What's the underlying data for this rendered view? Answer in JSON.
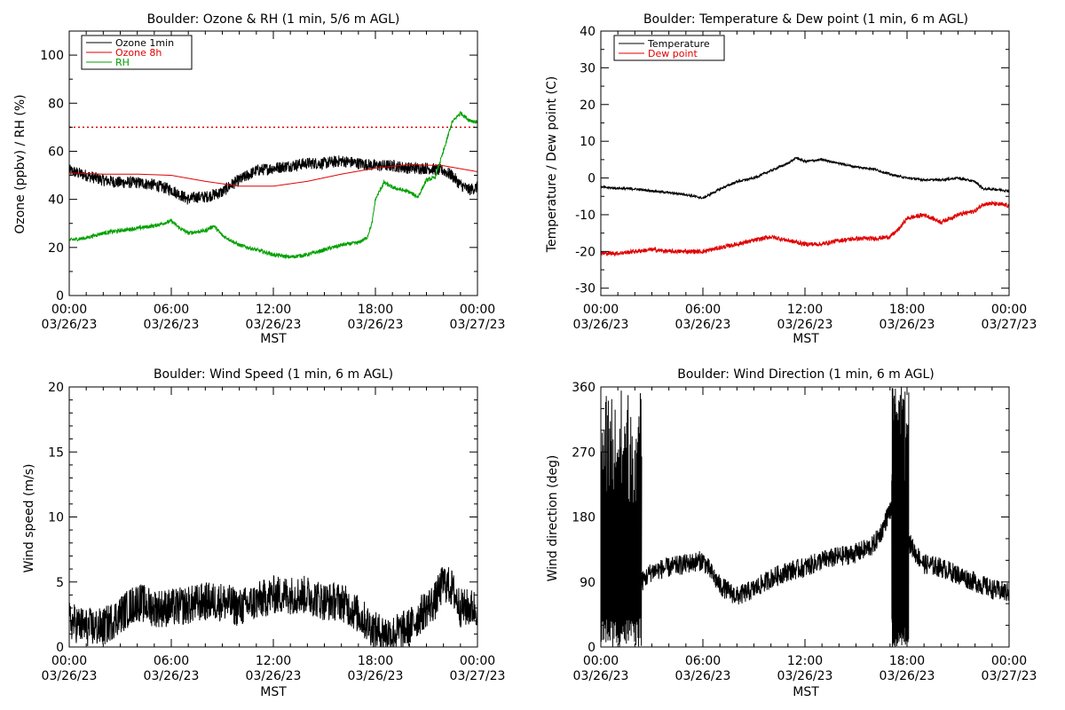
{
  "chart_data": [
    {
      "type": "line",
      "title": "Boulder: Ozone & RH (1 min, 5/6 m AGL)",
      "xlabel": "MST",
      "ylabel": "Ozone (ppbv) / RH (%)",
      "xlim": [
        0,
        24
      ],
      "ylim": [
        0,
        110
      ],
      "x_tick_labels": [
        {
          "time": "00:00",
          "date": "03/26/23"
        },
        {
          "time": "06:00",
          "date": "03/26/23"
        },
        {
          "time": "12:00",
          "date": "03/26/23"
        },
        {
          "time": "18:00",
          "date": "03/26/23"
        },
        {
          "time": "00:00",
          "date": "03/27/23"
        }
      ],
      "y_ticks": [
        0,
        20,
        40,
        60,
        80,
        100
      ],
      "legend": "top-left",
      "reference_line": {
        "y": 70,
        "style": "dotted",
        "color": "#e00000"
      },
      "series": [
        {
          "name": "Ozone 1min",
          "color": "#000000",
          "noise": 2.5,
          "x": [
            0,
            1,
            2,
            3,
            4,
            5,
            6,
            6.5,
            7,
            7.5,
            8,
            9,
            9.5,
            10,
            11,
            12,
            13,
            14,
            15,
            16,
            17,
            18,
            19,
            20,
            21,
            22,
            22.5,
            23,
            23.5,
            24
          ],
          "y": [
            52,
            50,
            48,
            47,
            47,
            46,
            44,
            42,
            40,
            41,
            41,
            43,
            46,
            48,
            52,
            53,
            54,
            55,
            55,
            56,
            55,
            54,
            54,
            53,
            53,
            52,
            50,
            46,
            44,
            45
          ]
        },
        {
          "name": "Ozone 8h",
          "color": "#e00000",
          "noise": 0,
          "x": [
            0,
            2,
            4,
            6,
            8,
            10,
            12,
            14,
            16,
            18,
            20,
            22,
            24
          ],
          "y": [
            51,
            50.5,
            50.5,
            50,
            47.5,
            45.5,
            45.5,
            47.5,
            50.5,
            53,
            54.5,
            54,
            51.5
          ]
        },
        {
          "name": "RH",
          "color": "#00a000",
          "noise": 0.8,
          "x": [
            0,
            1,
            2,
            3,
            4,
            5,
            6,
            6.5,
            7,
            8,
            8.5,
            9,
            9.5,
            10,
            11,
            12,
            13,
            14,
            15,
            16,
            17,
            17.5,
            17.8,
            18,
            18.5,
            19,
            20,
            20.5,
            21,
            21.5,
            22,
            22.5,
            23,
            23.5,
            24
          ],
          "y": [
            23,
            24,
            26,
            27,
            28,
            29,
            31,
            28,
            26,
            27,
            29,
            25,
            23,
            21,
            19,
            17,
            16,
            17,
            19,
            21,
            22,
            24,
            30,
            40,
            47,
            45,
            43,
            41,
            48,
            49,
            60,
            72,
            76,
            73,
            72
          ]
        }
      ]
    },
    {
      "type": "line",
      "title": "Boulder: Temperature & Dew point (1 min, 6 m AGL)",
      "xlabel": "MST",
      "ylabel": "Temperature / Dew point (C)",
      "xlim": [
        0,
        24
      ],
      "ylim": [
        -32,
        40
      ],
      "x_tick_labels": [
        {
          "time": "00:00",
          "date": "03/26/23"
        },
        {
          "time": "06:00",
          "date": "03/26/23"
        },
        {
          "time": "12:00",
          "date": "03/26/23"
        },
        {
          "time": "18:00",
          "date": "03/26/23"
        },
        {
          "time": "00:00",
          "date": "03/27/23"
        }
      ],
      "y_ticks": [
        -30,
        -20,
        -10,
        0,
        10,
        20,
        30,
        40
      ],
      "legend": "top-left",
      "series": [
        {
          "name": "Temperature",
          "color": "#000000",
          "noise": 0.3,
          "x": [
            0,
            1,
            2,
            3,
            4,
            5,
            6,
            7,
            8,
            9,
            10,
            11,
            11.5,
            12,
            13,
            14,
            15,
            16,
            17,
            18,
            19,
            20,
            21,
            22,
            22.5,
            23,
            24
          ],
          "y": [
            -2.5,
            -2.8,
            -3,
            -3.5,
            -4,
            -4.5,
            -5.5,
            -3,
            -1,
            0,
            2,
            4,
            5.5,
            4.5,
            5,
            4,
            3,
            2.5,
            1,
            0,
            -0.5,
            -0.5,
            0,
            -1,
            -3,
            -3,
            -3.5
          ]
        },
        {
          "name": "Dew point",
          "color": "#e00000",
          "noise": 0.6,
          "x": [
            0,
            1,
            2,
            3,
            4,
            5,
            6,
            7,
            8,
            9,
            10,
            11,
            12,
            13,
            14,
            15,
            16,
            17,
            17.5,
            18,
            19,
            20,
            21,
            22,
            22.5,
            23,
            24
          ],
          "y": [
            -20.5,
            -20.5,
            -20,
            -19.5,
            -20,
            -20,
            -20,
            -19,
            -18,
            -17,
            -16,
            -17,
            -18,
            -18,
            -17,
            -16.5,
            -16.5,
            -16,
            -14,
            -11,
            -10,
            -12,
            -10,
            -9,
            -7,
            -7,
            -7.5
          ]
        }
      ]
    },
    {
      "type": "line",
      "title": "Boulder: Wind Speed (1 min, 6 m AGL)",
      "xlabel": "MST",
      "ylabel": "Wind speed (m/s)",
      "xlim": [
        0,
        24
      ],
      "ylim": [
        0,
        20
      ],
      "x_tick_labels": [
        {
          "time": "00:00",
          "date": "03/26/23"
        },
        {
          "time": "06:00",
          "date": "03/26/23"
        },
        {
          "time": "12:00",
          "date": "03/26/23"
        },
        {
          "time": "18:00",
          "date": "03/26/23"
        },
        {
          "time": "00:00",
          "date": "03/27/23"
        }
      ],
      "y_ticks": [
        0,
        5,
        10,
        15,
        20
      ],
      "series": [
        {
          "name": "",
          "color": "#000000",
          "noise": 1.5,
          "floor": 0,
          "x": [
            0,
            1,
            2,
            3,
            4,
            5,
            6,
            7,
            8,
            9,
            10,
            11,
            12,
            13,
            14,
            15,
            16,
            17,
            18,
            19,
            20,
            21,
            21.5,
            22,
            22.5,
            23,
            24
          ],
          "y": [
            2,
            1.5,
            1.5,
            2.5,
            3.5,
            3,
            3,
            3.2,
            3.5,
            3.5,
            3,
            3.5,
            4,
            4,
            4,
            3.5,
            3.5,
            2.5,
            1.2,
            1,
            1.5,
            3,
            3.5,
            5,
            4.5,
            3,
            3
          ]
        }
      ]
    },
    {
      "type": "line",
      "title": "Boulder: Wind Direction (1 min, 6 m AGL)",
      "xlabel": "MST",
      "ylabel": "Wind direction (deg)",
      "xlim": [
        0,
        24
      ],
      "ylim": [
        0,
        360
      ],
      "x_tick_labels": [
        {
          "time": "00:00",
          "date": "03/26/23"
        },
        {
          "time": "06:00",
          "date": "03/26/23"
        },
        {
          "time": "12:00",
          "date": "03/26/23"
        },
        {
          "time": "18:00",
          "date": "03/26/23"
        },
        {
          "time": "00:00",
          "date": "03/27/23"
        }
      ],
      "y_ticks": [
        0,
        90,
        180,
        270,
        360
      ],
      "series": [
        {
          "name": "",
          "color": "#000000",
          "noise": 14,
          "floor": 0,
          "ceil": 360,
          "x": [
            0,
            2,
            2.4,
            3,
            4,
            5,
            6,
            7,
            8,
            9,
            10,
            11,
            12,
            13,
            14,
            15,
            16,
            16.5,
            17,
            17.5,
            18,
            18.5,
            19,
            20,
            21,
            22,
            23,
            24
          ],
          "y": [
            150,
            100,
            90,
            105,
            110,
            115,
            120,
            85,
            70,
            80,
            95,
            105,
            110,
            120,
            125,
            130,
            140,
            160,
            190,
            170,
            150,
            130,
            115,
            110,
            100,
            90,
            80,
            75
          ]
        }
      ],
      "spikes": {
        "segments": [
          [
            0,
            2.4,
            130
          ],
          [
            17.1,
            18.1,
            130
          ]
        ]
      }
    }
  ]
}
